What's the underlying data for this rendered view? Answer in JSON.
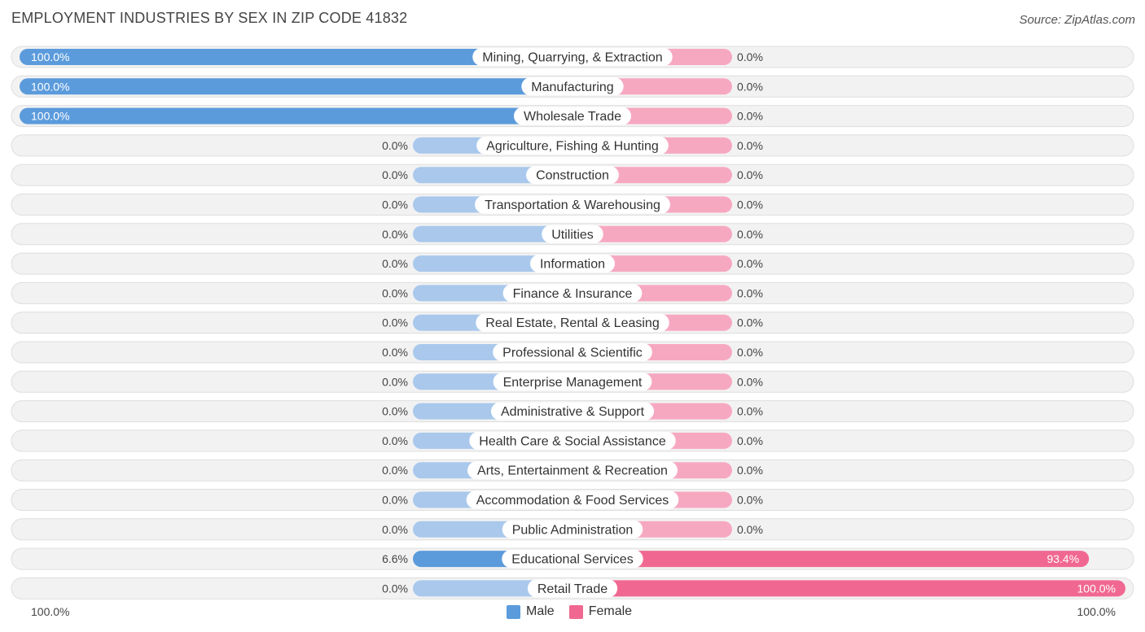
{
  "title": "EMPLOYMENT INDUSTRIES BY SEX IN ZIP CODE 41832",
  "source": "Source: ZipAtlas.com",
  "footer": {
    "left_axis": "100.0%",
    "right_axis": "100.0%"
  },
  "legend": {
    "male": "Male",
    "female": "Female"
  },
  "colors": {
    "male_strong": "#5b9bdc",
    "male_light": "#a9c8ec",
    "female_strong": "#f06891",
    "female_light": "#f7a8c1",
    "row_bg": "#f2f2f2",
    "row_border": "#dedede"
  },
  "chart_data": {
    "type": "bar",
    "orientation": "diverging-horizontal",
    "categories": [
      "Mining, Quarrying, & Extraction",
      "Manufacturing",
      "Wholesale Trade",
      "Agriculture, Fishing & Hunting",
      "Construction",
      "Transportation & Warehousing",
      "Utilities",
      "Information",
      "Finance & Insurance",
      "Real Estate, Rental & Leasing",
      "Professional & Scientific",
      "Enterprise Management",
      "Administrative & Support",
      "Health Care & Social Assistance",
      "Arts, Entertainment & Recreation",
      "Accommodation & Food Services",
      "Public Administration",
      "Educational Services",
      "Retail Trade"
    ],
    "series": [
      {
        "name": "Male",
        "values": [
          100.0,
          100.0,
          100.0,
          0.0,
          0.0,
          0.0,
          0.0,
          0.0,
          0.0,
          0.0,
          0.0,
          0.0,
          0.0,
          0.0,
          0.0,
          0.0,
          0.0,
          6.6,
          0.0
        ],
        "labels": [
          "100.0%",
          "100.0%",
          "100.0%",
          "0.0%",
          "0.0%",
          "0.0%",
          "0.0%",
          "0.0%",
          "0.0%",
          "0.0%",
          "0.0%",
          "0.0%",
          "0.0%",
          "0.0%",
          "0.0%",
          "0.0%",
          "0.0%",
          "6.6%",
          "0.0%"
        ]
      },
      {
        "name": "Female",
        "values": [
          0.0,
          0.0,
          0.0,
          0.0,
          0.0,
          0.0,
          0.0,
          0.0,
          0.0,
          0.0,
          0.0,
          0.0,
          0.0,
          0.0,
          0.0,
          0.0,
          0.0,
          93.4,
          100.0
        ],
        "labels": [
          "0.0%",
          "0.0%",
          "0.0%",
          "0.0%",
          "0.0%",
          "0.0%",
          "0.0%",
          "0.0%",
          "0.0%",
          "0.0%",
          "0.0%",
          "0.0%",
          "0.0%",
          "0.0%",
          "0.0%",
          "0.0%",
          "0.0%",
          "93.4%",
          "100.0%"
        ]
      }
    ],
    "xlim": [
      -100,
      100
    ],
    "legend_position": "bottom-center"
  }
}
